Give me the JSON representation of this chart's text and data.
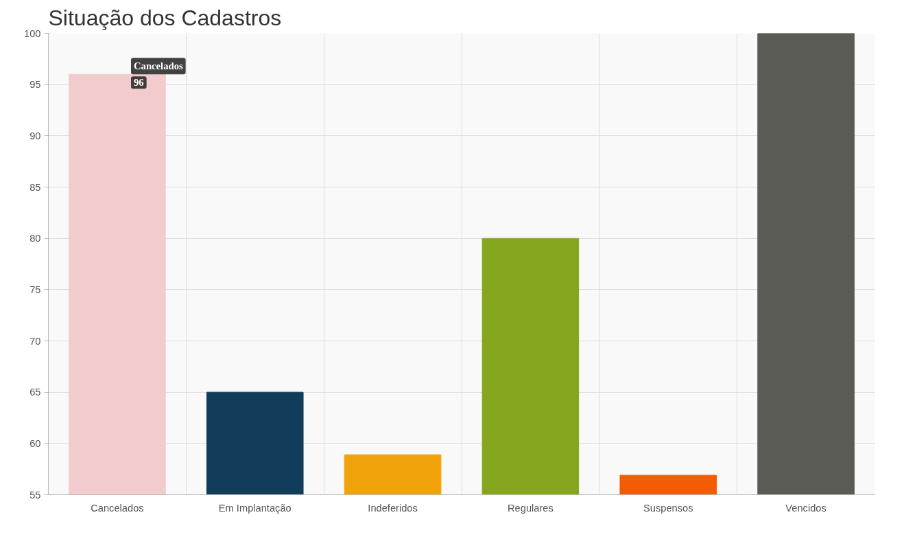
{
  "chart_data": {
    "type": "bar",
    "title": "Situação dos Cadastros",
    "categories": [
      "Cancelados",
      "Em Implantação",
      "Indeferidos",
      "Regulares",
      "Suspensos",
      "Vencidos"
    ],
    "values": [
      96,
      65,
      58.9,
      80,
      56.9,
      100
    ],
    "colors": [
      "#f2cccc",
      "#123d5a",
      "#f0a30a",
      "#86a51f",
      "#f25c05",
      "#5b5b55"
    ],
    "ylim": [
      55,
      100
    ],
    "yticks": [
      55,
      60,
      65,
      70,
      75,
      80,
      85,
      90,
      95,
      100
    ],
    "grid": true,
    "annotations": [
      {
        "text": "Cancelados",
        "x": "Cancelados",
        "y": 96
      },
      {
        "text": "96",
        "x": "Cancelados",
        "y": 96
      }
    ]
  }
}
